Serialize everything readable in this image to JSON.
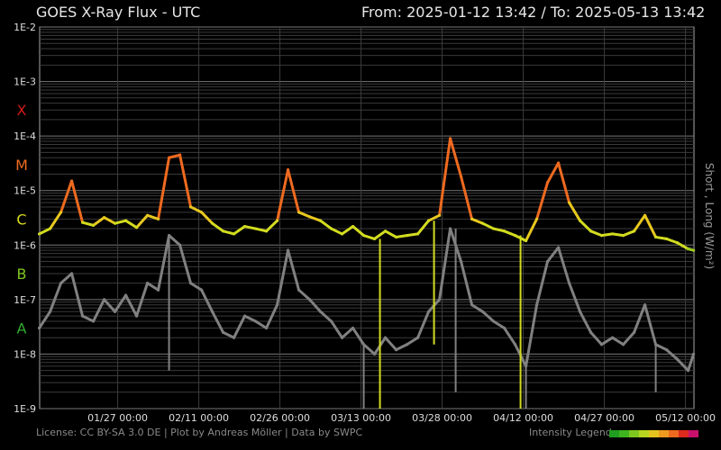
{
  "header": {
    "title": "GOES X-Ray Flux - UTC",
    "range": "From: 2025-01-12 13:42  /  To: 2025-05-13 13:42"
  },
  "footer": {
    "license": "License: CC BY-SA 3.0 DE | Plot by Andreas Möller | Data by SWPC",
    "legend_label": "Intensity Legend",
    "legend_colors": [
      "#1f9e1f",
      "#3fb51f",
      "#7ec81f",
      "#b8d61f",
      "#e6c41f",
      "#ee9a1f",
      "#ee6a1f",
      "#dd2a1f",
      "#c8106a"
    ]
  },
  "chart_data": {
    "type": "line",
    "title": "GOES X-Ray Flux - UTC",
    "ylabel": "Short , Long (W/m²)",
    "yscale": "log",
    "ylim": [
      1e-09,
      0.01
    ],
    "y_ticks": [
      "1E-2",
      "1E-3",
      "1E-4",
      "1E-5",
      "1E-6",
      "1E-7",
      "1E-8",
      "1E-9"
    ],
    "flare_classes": [
      {
        "label": "X",
        "value": 0.0003,
        "color": "#d21a1a"
      },
      {
        "label": "M",
        "value": 3e-05,
        "color": "#ee6a1f"
      },
      {
        "label": "C",
        "value": 3e-06,
        "color": "#d8dc1f"
      },
      {
        "label": "B",
        "value": 3e-07,
        "color": "#7ec81f"
      },
      {
        "label": "A",
        "value": 3e-08,
        "color": "#2fae2f"
      }
    ],
    "x_range": [
      "2025-01-12 13:42",
      "2025-05-13 13:42"
    ],
    "x_ticks": [
      "01/27 00:00",
      "02/11 00:00",
      "02/26 00:00",
      "03/13 00:00",
      "03/28 00:00",
      "04/12 00:00",
      "04/27 00:00",
      "05/12 00:00"
    ],
    "grid": true,
    "series": [
      {
        "name": "Long",
        "color_mode": "intensity",
        "x": [
          "2025-01-12",
          "2025-01-14",
          "2025-01-16",
          "2025-01-18",
          "2025-01-20",
          "2025-01-22",
          "2025-01-24",
          "2025-01-26",
          "2025-01-28",
          "2025-01-30",
          "2025-02-01",
          "2025-02-03",
          "2025-02-05",
          "2025-02-07",
          "2025-02-09",
          "2025-02-11",
          "2025-02-13",
          "2025-02-15",
          "2025-02-17",
          "2025-02-19",
          "2025-02-21",
          "2025-02-23",
          "2025-02-25",
          "2025-02-27",
          "2025-03-01",
          "2025-03-03",
          "2025-03-05",
          "2025-03-07",
          "2025-03-09",
          "2025-03-11",
          "2025-03-13",
          "2025-03-15",
          "2025-03-17",
          "2025-03-19",
          "2025-03-21",
          "2025-03-23",
          "2025-03-25",
          "2025-03-27",
          "2025-03-29",
          "2025-03-31",
          "2025-04-02",
          "2025-04-04",
          "2025-04-06",
          "2025-04-08",
          "2025-04-10",
          "2025-04-12",
          "2025-04-14",
          "2025-04-16",
          "2025-04-18",
          "2025-04-20",
          "2025-04-22",
          "2025-04-24",
          "2025-04-26",
          "2025-04-28",
          "2025-04-30",
          "2025-05-02",
          "2025-05-04",
          "2025-05-06",
          "2025-05-08",
          "2025-05-10",
          "2025-05-12",
          "2025-05-13"
        ],
        "y": [
          1.6e-06,
          2e-06,
          4e-06,
          1.5e-05,
          2.6e-06,
          2.3e-06,
          3.2e-06,
          2.5e-06,
          2.8e-06,
          2.1e-06,
          3.5e-06,
          3e-06,
          4e-05,
          4.5e-05,
          5e-06,
          4e-06,
          2.5e-06,
          1.8e-06,
          1.6e-06,
          2.2e-06,
          2e-06,
          1.8e-06,
          2.8e-06,
          2.4e-05,
          4e-06,
          3.3e-06,
          2.8e-06,
          2e-06,
          1.6e-06,
          2.2e-06,
          1.5e-06,
          1.3e-06,
          1.8e-06,
          1.4e-06,
          1.5e-06,
          1.6e-06,
          2.8e-06,
          3.5e-06,
          9e-05,
          1.8e-05,
          3e-06,
          2.5e-06,
          2e-06,
          1.8e-06,
          1.5e-06,
          1.2e-06,
          3e-06,
          1.4e-05,
          3.2e-05,
          6e-06,
          2.8e-06,
          1.8e-06,
          1.5e-06,
          1.6e-06,
          1.5e-06,
          1.8e-06,
          3.5e-06,
          1.4e-06,
          1.3e-06,
          1.1e-06,
          8.5e-07,
          8e-07
        ]
      },
      {
        "name": "Short",
        "color": "#808080",
        "x": [
          "2025-01-12",
          "2025-01-14",
          "2025-01-16",
          "2025-01-18",
          "2025-01-20",
          "2025-01-22",
          "2025-01-24",
          "2025-01-26",
          "2025-01-28",
          "2025-01-30",
          "2025-02-01",
          "2025-02-03",
          "2025-02-05",
          "2025-02-07",
          "2025-02-09",
          "2025-02-11",
          "2025-02-13",
          "2025-02-15",
          "2025-02-17",
          "2025-02-19",
          "2025-02-21",
          "2025-02-23",
          "2025-02-25",
          "2025-02-27",
          "2025-03-01",
          "2025-03-03",
          "2025-03-05",
          "2025-03-07",
          "2025-03-09",
          "2025-03-11",
          "2025-03-13",
          "2025-03-15",
          "2025-03-17",
          "2025-03-19",
          "2025-03-21",
          "2025-03-23",
          "2025-03-25",
          "2025-03-27",
          "2025-03-29",
          "2025-03-31",
          "2025-04-02",
          "2025-04-04",
          "2025-04-06",
          "2025-04-08",
          "2025-04-10",
          "2025-04-12",
          "2025-04-14",
          "2025-04-16",
          "2025-04-18",
          "2025-04-20",
          "2025-04-22",
          "2025-04-24",
          "2025-04-26",
          "2025-04-28",
          "2025-04-30",
          "2025-05-02",
          "2025-05-04",
          "2025-05-06",
          "2025-05-08",
          "2025-05-10",
          "2025-05-12",
          "2025-05-13"
        ],
        "y": [
          3e-08,
          6e-08,
          2e-07,
          3e-07,
          5e-08,
          4e-08,
          1e-07,
          6e-08,
          1.2e-07,
          5e-08,
          2e-07,
          1.5e-07,
          1.5e-06,
          1e-06,
          2e-07,
          1.5e-07,
          6e-08,
          2.5e-08,
          2e-08,
          5e-08,
          4e-08,
          3e-08,
          8e-08,
          8e-07,
          1.5e-07,
          1e-07,
          6e-08,
          4e-08,
          2e-08,
          3e-08,
          1.5e-08,
          1e-08,
          2e-08,
          1.2e-08,
          1.5e-08,
          2e-08,
          6e-08,
          1e-07,
          2e-06,
          5e-07,
          8e-08,
          6e-08,
          4e-08,
          3e-08,
          1.5e-08,
          6e-09,
          8e-08,
          5e-07,
          9e-07,
          2e-07,
          6e-08,
          2.5e-08,
          1.5e-08,
          2e-08,
          1.5e-08,
          2.5e-08,
          8e-08,
          1.5e-08,
          1.2e-08,
          8e-09,
          5e-09,
          1e-08
        ]
      }
    ],
    "spikes": [
      {
        "series": "Short",
        "x": "2025-02-05",
        "y": 5e-09
      },
      {
        "series": "Short",
        "x": "2025-03-13",
        "y": 1e-09
      },
      {
        "series": "Short",
        "x": "2025-03-30",
        "y": 2e-09
      },
      {
        "series": "Short",
        "x": "2025-04-12",
        "y": 1e-09
      },
      {
        "series": "Short",
        "x": "2025-05-06",
        "y": 2e-09
      },
      {
        "series": "Long",
        "x": "2025-03-16",
        "y": 1e-09
      },
      {
        "series": "Long",
        "x": "2025-03-26",
        "y": 1.5e-08
      },
      {
        "series": "Long",
        "x": "2025-04-11",
        "y": 1e-09
      }
    ]
  }
}
